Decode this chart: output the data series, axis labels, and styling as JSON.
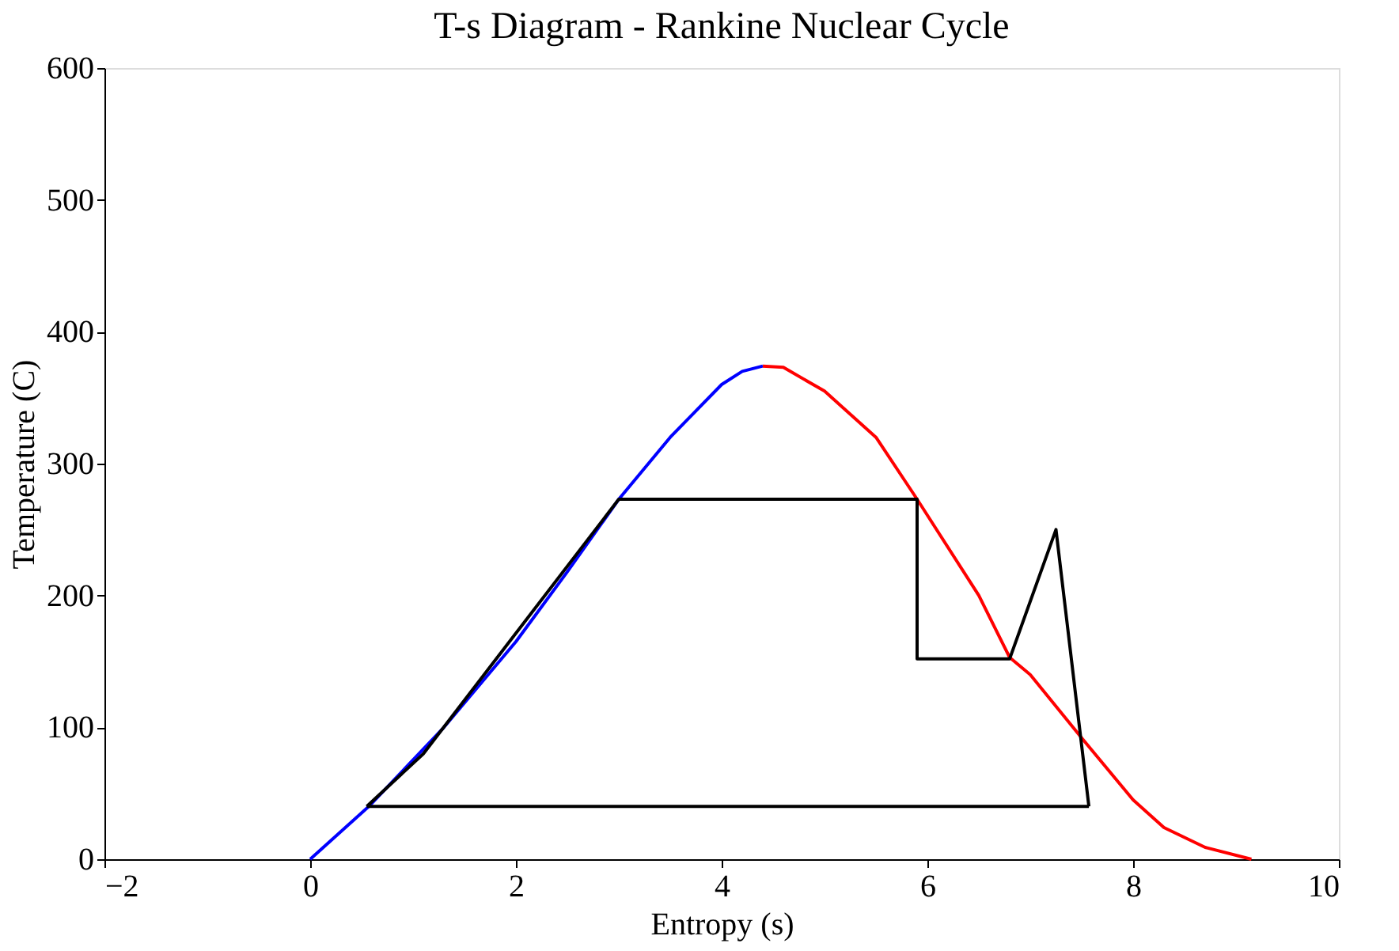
{
  "chart_data": {
    "type": "line",
    "title": "T-s Diagram - Rankine Nuclear Cycle",
    "xlabel": "Entropy (s)",
    "ylabel": "Temperature (C)",
    "xlim": [
      -2,
      10
    ],
    "ylim": [
      0,
      600
    ],
    "xticks": [
      -2,
      0,
      2,
      4,
      6,
      8,
      10
    ],
    "yticks": [
      0,
      100,
      200,
      300,
      400,
      500,
      600
    ],
    "grid": false,
    "marker": "none",
    "line_style": "solid",
    "series": [
      {
        "color": "#0000ff",
        "x": [
          0,
          0.57,
          1.3,
          2.0,
          2.5,
          3.0,
          3.5,
          4.0,
          4.2,
          4.4
        ],
        "values": [
          0,
          40,
          100,
          165,
          218,
          273,
          320,
          360,
          370,
          374
        ]
      },
      {
        "color": "#ff0000",
        "x": [
          4.4,
          4.6,
          5.0,
          5.5,
          5.9,
          6.5,
          6.8,
          7.0,
          7.5,
          8.0,
          8.3,
          8.7,
          9.15
        ],
        "values": [
          374,
          373,
          355,
          320,
          273,
          200,
          153,
          140,
          92,
          45,
          24,
          9,
          0
        ]
      },
      {
        "color": "#000000",
        "x": [
          0.55,
          1.1,
          3.0,
          5.9,
          5.9,
          6.8,
          7.25,
          7.57
        ],
        "values": [
          40,
          80,
          273,
          273,
          152,
          152,
          250,
          40
        ]
      },
      {
        "color": "#000000",
        "x": [
          0.55,
          7.57
        ],
        "values": [
          40,
          40
        ]
      }
    ]
  }
}
